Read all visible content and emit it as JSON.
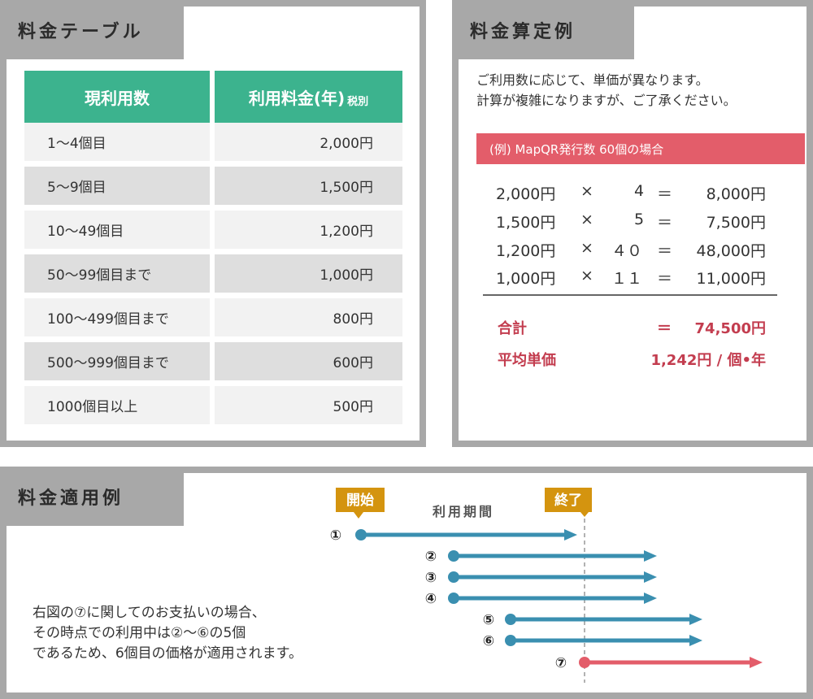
{
  "price_table": {
    "tab": "料金テーブル",
    "header": {
      "quantity": "現利用数",
      "price": "利用料金(年)",
      "price_note": "税別"
    },
    "rows": [
      {
        "quantity": "1～4個目",
        "price": "2,000円"
      },
      {
        "quantity": "5～9個目",
        "price": "1,500円"
      },
      {
        "quantity": "10～49個目",
        "price": "1,200円"
      },
      {
        "quantity": "50～99個目まで",
        "price": "1,000円"
      },
      {
        "quantity": "100～499個目まで",
        "price": "800円"
      },
      {
        "quantity": "500～999個目まで",
        "price": "600円"
      },
      {
        "quantity": "1000個目以上",
        "price": "500円"
      }
    ]
  },
  "calculation": {
    "tab": "料金算定例",
    "intro": [
      "ご利用数に応じて、単価が異なります。",
      "計算が複雑になりますが、ご了承ください。"
    ],
    "example_title": "(例) MapQR発行数 60個の場合",
    "rows": [
      {
        "unit": "2,000円",
        "times": "×",
        "count": "4",
        "equals": "＝",
        "amount": "8,000円"
      },
      {
        "unit": "1,500円",
        "times": "×",
        "count": "5",
        "equals": "＝",
        "amount": "7,500円"
      },
      {
        "unit": "1,200円",
        "times": "×",
        "count": "４０",
        "equals": "＝",
        "amount": "48,000円"
      },
      {
        "unit": "1,000円",
        "times": "×",
        "count": "１１",
        "equals": "＝",
        "amount": "11,000円"
      }
    ],
    "total_label": "合計",
    "total_equals": "＝",
    "total_value": "74,500円",
    "average_label": "平均単価",
    "average_value": "1,242円 / 個•年"
  },
  "application": {
    "tab": "料金適用例",
    "start_label": "開始",
    "end_label": "終了",
    "period_label": "利用期間",
    "bars": [
      {
        "label": "①",
        "color": "#3a8fb0"
      },
      {
        "label": "②",
        "color": "#3a8fb0"
      },
      {
        "label": "③",
        "color": "#3a8fb0"
      },
      {
        "label": "④",
        "color": "#3a8fb0"
      },
      {
        "label": "⑤",
        "color": "#3a8fb0"
      },
      {
        "label": "⑥",
        "color": "#3a8fb0"
      },
      {
        "label": "⑦",
        "color": "#e35d6a"
      }
    ],
    "marker_color": "#d4940f",
    "description": [
      "右図の⑦に関してのお支払いの場合、",
      "その時点での利用中は②～⑥の5個",
      "であるため、6個目の価格が適用されます。"
    ]
  }
}
